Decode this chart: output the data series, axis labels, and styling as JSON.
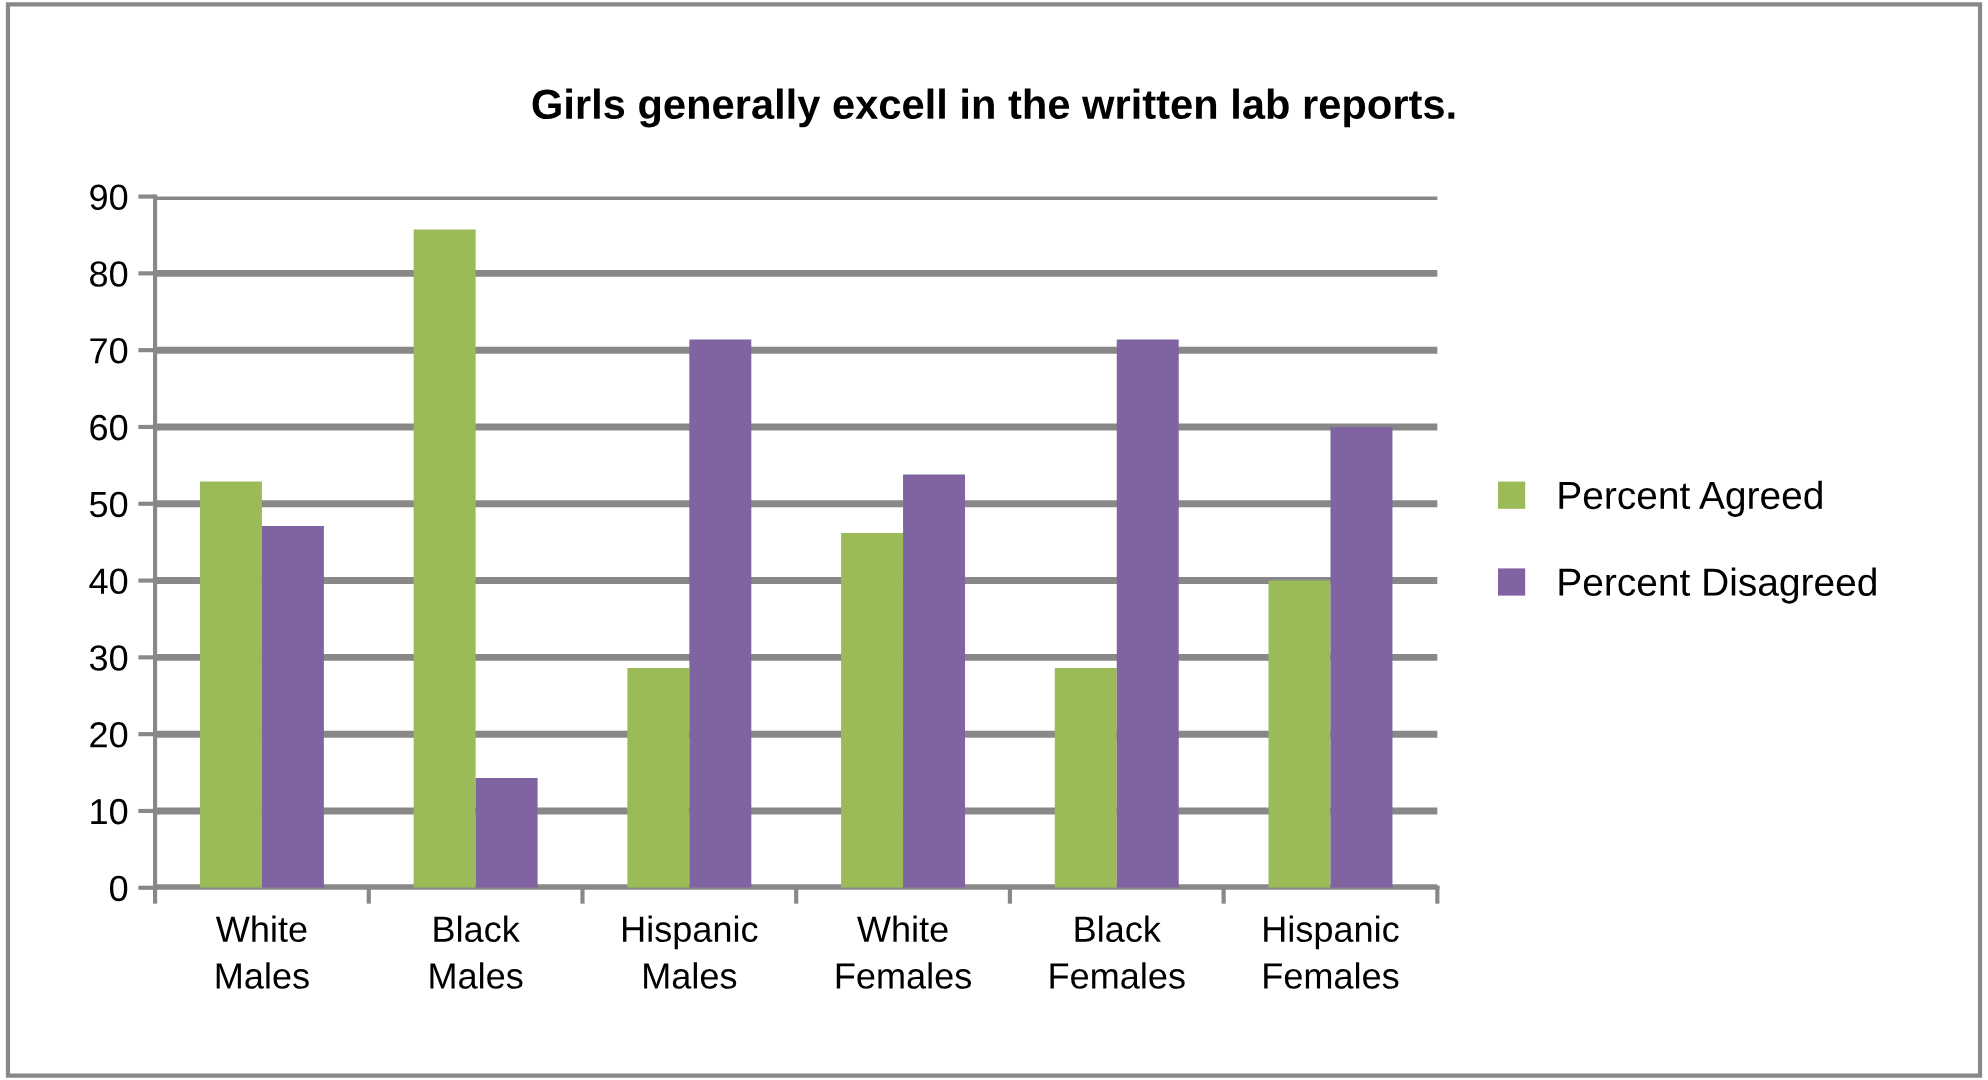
{
  "chart_data": {
    "type": "bar",
    "title": "Girls generally excell in the written lab reports.",
    "categories": [
      "White\nMales",
      "Black\nMales",
      "Hispanic\nMales",
      "White\nFemales",
      "Black\nFemales",
      "Hispanic\nFemales"
    ],
    "series": [
      {
        "name": "Percent Agreed",
        "color": "#9bbb59",
        "values": [
          52.9,
          85.7,
          28.6,
          46.2,
          28.6,
          40
        ]
      },
      {
        "name": "Percent Disagreed",
        "color": "#8064a2",
        "values": [
          47.1,
          14.3,
          71.4,
          53.8,
          71.4,
          60
        ]
      }
    ],
    "ylim": [
      0,
      90
    ],
    "yticks": [
      0,
      10,
      20,
      30,
      40,
      50,
      60,
      70,
      80,
      90
    ],
    "grid": "y",
    "legend": "right"
  }
}
